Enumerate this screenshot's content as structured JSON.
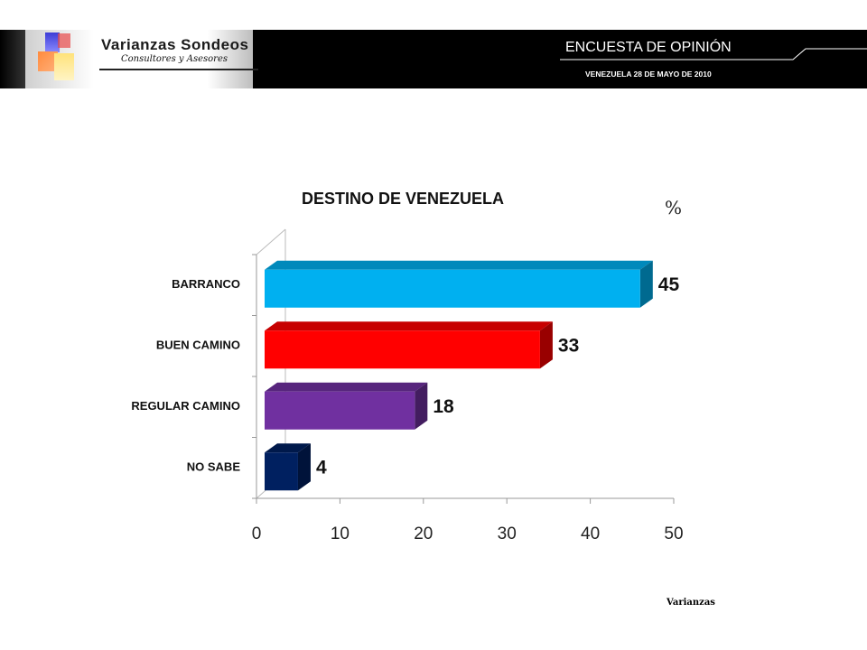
{
  "header": {
    "logo_title": "Varianzas Sondeos",
    "logo_subtitle": "Consultores y Asesores",
    "survey_title": "ENCUESTA DE OPINIÓN",
    "survey_subtitle": "VENEZUELA 28 DE MAYO DE 2010"
  },
  "footer": {
    "source": "Varianzas"
  },
  "colors": {
    "header_bg": "#000000",
    "barranco": "#00b0f0",
    "buen_camino": "#ff0000",
    "regular_camino": "#7030a0",
    "no_sabe": "#002060"
  },
  "chart_data": {
    "type": "bar",
    "orientation": "horizontal",
    "title": "DESTINO DE VENEZUELA",
    "unit_label": "%",
    "categories": [
      "BARRANCO",
      "BUEN CAMINO",
      "REGULAR CAMINO",
      "NO SABE"
    ],
    "values": [
      45,
      33,
      18,
      4
    ],
    "data_labels": [
      "45",
      "33",
      "18",
      "4"
    ],
    "bar_colors": [
      "#00b0f0",
      "#ff0000",
      "#7030a0",
      "#002060"
    ],
    "xlim": [
      0,
      50
    ],
    "xticks": [
      "0",
      "10",
      "20",
      "30",
      "40",
      "50"
    ],
    "grid": false,
    "legend": "none",
    "style": "3d"
  }
}
